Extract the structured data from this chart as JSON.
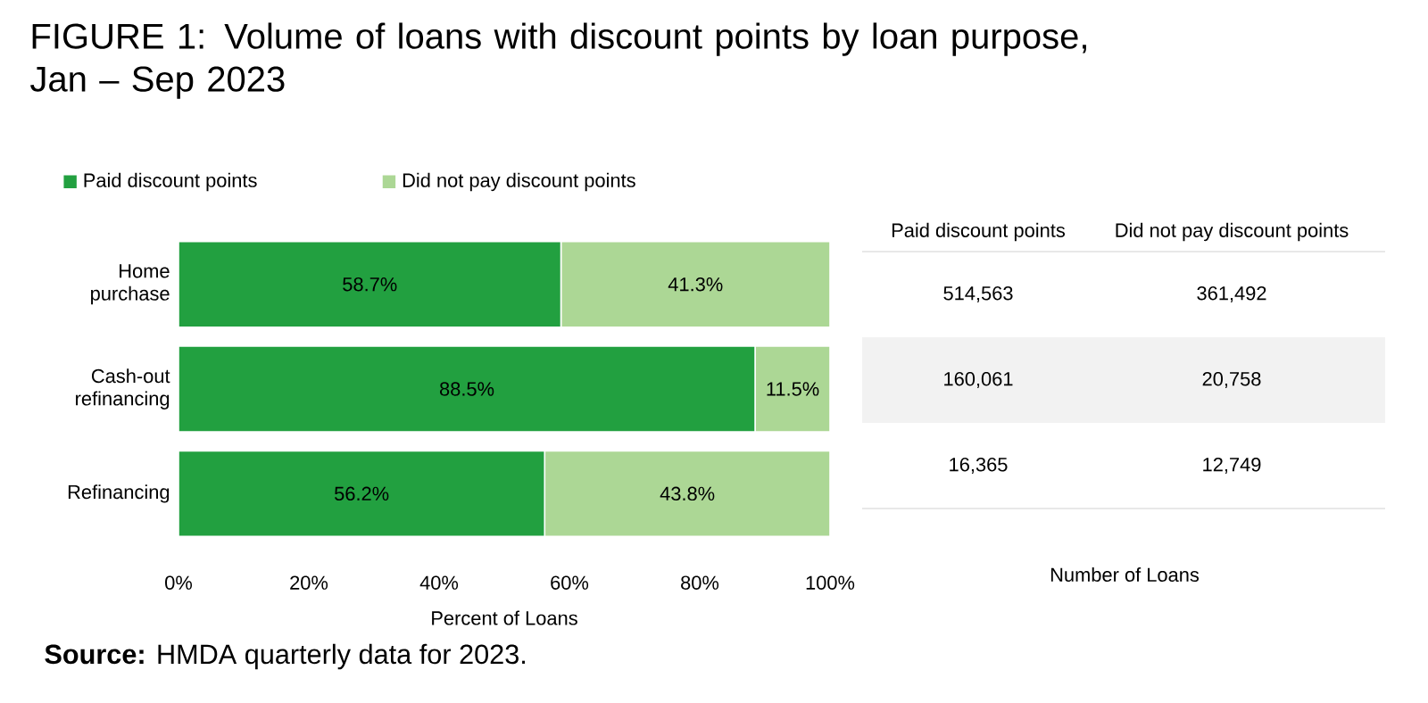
{
  "chart_data": [
    {
      "type": "bar",
      "orientation": "horizontal",
      "stacked": true,
      "title": "FIGURE 1: Volume of loans with discount points by loan purpose, Jan – Sep 2023",
      "xlabel": "Percent of Loans",
      "categories": [
        "Home purchase",
        "Cash-out refinancing",
        "Refinancing"
      ],
      "series": [
        {
          "name": "Paid discount points",
          "color": "#22a040",
          "values": [
            58.7,
            88.5,
            56.2
          ],
          "value_labels": [
            "58.7%",
            "88.5%",
            "56.2%"
          ]
        },
        {
          "name": "Did not pay discount points",
          "color": "#acd795",
          "values": [
            41.3,
            11.5,
            43.8
          ],
          "value_labels": [
            "41.3%",
            "11.5%",
            "43.8%"
          ]
        }
      ],
      "xlim": [
        0,
        100
      ],
      "xticks": [
        {
          "value": 0,
          "label": "0%"
        },
        {
          "value": 20,
          "label": "20%"
        },
        {
          "value": 40,
          "label": "40%"
        },
        {
          "value": 60,
          "label": "60%"
        },
        {
          "value": 80,
          "label": "80%"
        },
        {
          "value": 100,
          "label": "100%"
        }
      ],
      "legend": "top left",
      "annotations": [
        "**Source:** HMDA quarterly data for 2023."
      ]
    },
    {
      "type": "other",
      "xlabel": "Number of Loans",
      "annotations": [
        "Paid discount points",
        "Did not pay discount points",
        "514,563",
        "361,492",
        "160,061",
        "20,758",
        "16,365",
        "12,749"
      ]
    }
  ]
}
